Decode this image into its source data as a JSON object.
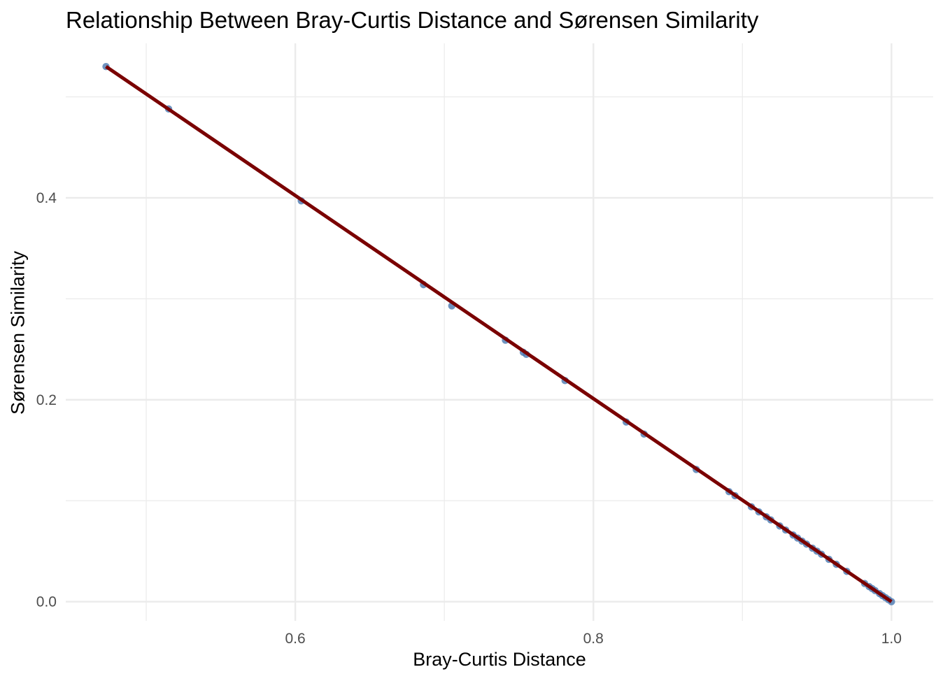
{
  "chart_data": {
    "type": "scatter",
    "title": "Relationship Between Bray-Curtis Distance and Sørensen Similarity",
    "xlabel": "Bray-Curtis Distance",
    "ylabel": "Sørensen Similarity",
    "xlim": [
      0.446,
      1.028
    ],
    "ylim": [
      -0.019,
      0.553
    ],
    "x_ticks": [
      0.6,
      0.8,
      1.0
    ],
    "x_tick_labels": [
      "0.6",
      "0.8",
      "1.0"
    ],
    "y_ticks": [
      0.0,
      0.2,
      0.4
    ],
    "y_tick_labels": [
      "0.0",
      "0.2",
      "0.4"
    ],
    "x_minor_ticks": [
      0.5,
      0.7,
      0.9
    ],
    "y_minor_ticks": [
      0.1,
      0.3,
      0.5
    ],
    "grid": true,
    "colors": {
      "points": "#4A78B0",
      "fit_line": "#7A0000",
      "grid": "#EBEBEB",
      "tick_text": "#4D4D4D"
    },
    "fit_line": {
      "x": [
        0.473,
        1.0
      ],
      "y": [
        0.53,
        0.0
      ]
    },
    "series": [
      {
        "x": [
          0.473,
          0.515,
          0.604,
          0.686,
          0.705,
          0.741,
          0.753,
          0.755,
          0.781,
          0.822,
          0.834,
          0.869,
          0.891,
          0.895,
          0.906,
          0.911,
          0.916,
          0.919,
          0.925,
          0.929,
          0.934,
          0.937,
          0.94,
          0.943,
          0.947,
          0.95,
          0.953,
          0.958,
          0.963,
          0.97,
          0.982,
          0.985,
          0.987,
          0.989,
          0.992,
          0.994,
          0.996,
          0.998,
          1.0
        ],
        "y": [
          0.53,
          0.488,
          0.397,
          0.314,
          0.293,
          0.259,
          0.247,
          0.245,
          0.219,
          0.178,
          0.166,
          0.131,
          0.109,
          0.105,
          0.094,
          0.089,
          0.084,
          0.081,
          0.075,
          0.071,
          0.066,
          0.063,
          0.06,
          0.057,
          0.053,
          0.05,
          0.047,
          0.042,
          0.037,
          0.03,
          0.018,
          0.015,
          0.013,
          0.011,
          0.008,
          0.006,
          0.004,
          0.002,
          0.0
        ]
      }
    ]
  }
}
